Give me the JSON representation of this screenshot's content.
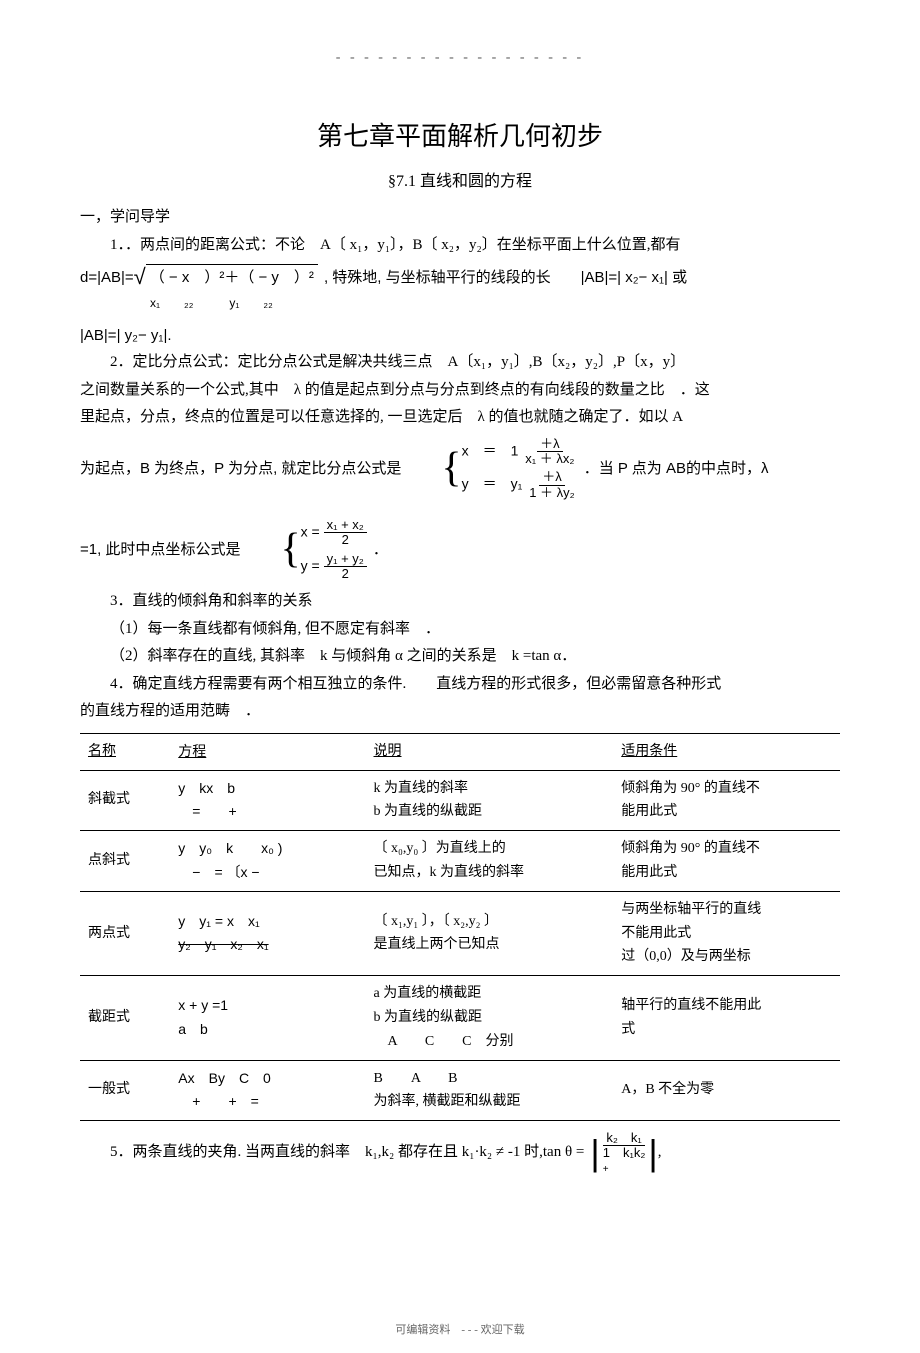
{
  "doc": {
    "dashes": "- - - - - - - - - - - - - - - - - -",
    "title": "第七章平面解析几何初步",
    "subtitle": "§7.1 直线和圆的方程",
    "sec1_heading": "一，学问导学",
    "item1": "1．．两点间的距离公式：不论　A〔 x₁，y₁〕，B〔 x₂，y₂〕在坐标平面上什么位置,都有",
    "dist_prefix": "d=|AB|=",
    "dist_sqrt_body": "（ − x　）²＋（ − y　）²",
    "dist_subs": "x₁　　₂₂　　　y₁　　₂₂",
    "dist_suffix": ", 特殊地, 与坐标轴平行的线段的长　　|AB|=| x₂− x₁| 或",
    "dist_line2": "|AB|=| y₂− y₁|.",
    "item2_l1": "2．定比分点公式：定比分点公式是解决共线三点　A〔x₁，y₁〕,B〔x₂，y₂〕,P〔x，y〕",
    "item2_l2": "之间数量关系的一个公式,其中　λ 的值是起点到分点与分点到终点的有向线段的数量之比　．这",
    "item2_l3": "里起点，分点，终点的位置是可以任意选择的, 一旦选定后　λ 的值也就随之确定了．如以 A",
    "item2_l4_pre": "为起点，B 为终点，P 为分点, 就定比分点公式是",
    "item2_l4_post": "．当 P 点为 AB的中点时，λ",
    "brace1_x_num": "＋λ",
    "brace1_x_den": "x₁ ＋ λx₂",
    "brace1_x_lead": "x　＝　1",
    "brace1_y_num": "＋λ",
    "brace1_y_den": "1 ＋ λy₂",
    "brace1_y_lead": "y　＝　y₁",
    "item2_mid_pre": "=1, 此时中点坐标公式是",
    "brace2_x": "x = ",
    "brace2_x_num": "x₁ + x₂",
    "brace2_x_den": "2",
    "brace2_y": "y = ",
    "brace2_y_num": "y₁ + y₂",
    "brace2_y_den": "2",
    "period": "．",
    "item3": "3．直线的倾斜角和斜率的关系",
    "item3_1": "（1）每一条直线都有倾斜角, 但不愿定有斜率　．",
    "item3_2": "（2）斜率存在的直线, 其斜率　k 与倾斜角 α 之间的关系是　k =tan α．",
    "item4_l1": "4．确定直线方程需要有两个相互独立的条件.　　直线方程的形式很多，但必需留意各种形式",
    "item4_l2": "的直线方程的适用范畴　．",
    "table": {
      "head": {
        "name": "名称",
        "eq": "方程",
        "desc": "说明",
        "cond": "适用条件"
      },
      "rows": [
        {
          "name": "斜截式",
          "eq_html": "y　kx　b<br>　=　　+",
          "desc": "k 为直线的斜率<br>b 为直线的纵截距",
          "cond": "倾斜角为 90° 的直线不<br>能用此式"
        },
        {
          "name": "点斜式",
          "eq_html": "y　y₀　k　　x₀ )<br>　−　= 〔x −",
          "desc": "〔 x₀,y₀ 〕为直线上的<br>已知点，k 为直线的斜率",
          "cond": "倾斜角为 90° 的直线不<br>能用此式"
        },
        {
          "name": "两点式",
          "eq_html": "y　y₁ = x　x₁<br><span class='strike'>y₂　y₁　x₂　x₁</span>",
          "desc": "〔 x₁,y₁ 〕，〔 x₂,y₂ 〕<br>是直线上两个已知点",
          "cond": "与两坐标轴平行的直线<br>不能用此式<br>过（0,0）及与两坐标"
        },
        {
          "name": "截距式",
          "eq_html": "x + y =1<br>a　b",
          "desc": "a 为直线的横截距<br>b 为直线的纵截距<br>　A　　C　　C　分别",
          "cond": "轴平行的直线不能用此<br>式"
        },
        {
          "name": "一般式",
          "eq_html": "Ax　By　C　0<br>　+　　+　=",
          "desc": "B　　A　　B<br>为斜率, 横截距和纵截距",
          "cond": "A，B 不全为零"
        }
      ]
    },
    "item5_pre": "5．两条直线的夹角. 当两直线的斜率　k₁,k₂ 都存在且 k₁·k₂ ≠ -1 时,tan θ =",
    "item5_frac_num": "k₂　k₁",
    "item5_frac_den": "1　k₁k₂",
    "item5_frac_ops": "+",
    "item5_tail": ",",
    "footer": "可编辑资料　- - - 欢迎下载"
  },
  "colors": {
    "text": "#000000",
    "bg": "#ffffff",
    "footer": "#666666"
  }
}
